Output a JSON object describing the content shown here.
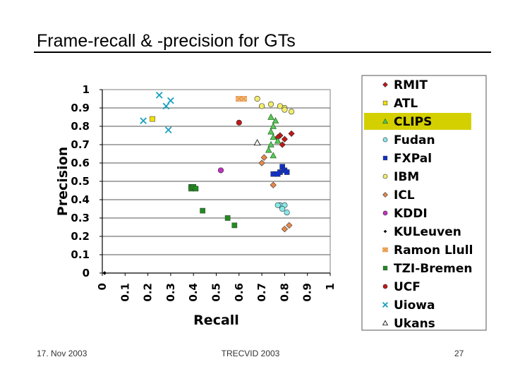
{
  "slide": {
    "title": "Frame-recall & -precision for GTs",
    "footer_date": "17. Nov 2003",
    "footer_conference": "TRECVID 2003",
    "page_number": "27"
  },
  "chart_data": {
    "type": "scatter",
    "title": "",
    "xlabel": "Recall",
    "ylabel": "Precision",
    "xlim": [
      0,
      1
    ],
    "ylim": [
      0,
      1
    ],
    "x_ticks": [
      "0",
      "0.1",
      "0.2",
      "0.3",
      "0.4",
      "0.5",
      "0.6",
      "0.7",
      "0.8",
      "0.9",
      "1"
    ],
    "y_ticks": [
      "0",
      "0.1",
      "0.2",
      "0.3",
      "0.4",
      "0.5",
      "0.6",
      "0.7",
      "0.8",
      "0.9",
      "1"
    ],
    "grid": "horizontal",
    "legend_position": "right",
    "highlighted_series": "CLIPS",
    "highlight_color": "#d4d000",
    "series": [
      {
        "name": "RMIT",
        "marker": "diamond",
        "color": "#c01818",
        "points": [
          [
            0.78,
            0.75
          ],
          [
            0.8,
            0.73
          ],
          [
            0.83,
            0.76
          ],
          [
            0.79,
            0.7
          ],
          [
            0.77,
            0.74
          ]
        ]
      },
      {
        "name": "ATL",
        "marker": "square",
        "color": "#f2e000",
        "points": [
          [
            0.22,
            0.84
          ]
        ]
      },
      {
        "name": "CLIPS",
        "marker": "triangle",
        "color": "#58c858",
        "points": [
          [
            0.74,
            0.85
          ],
          [
            0.75,
            0.8
          ],
          [
            0.76,
            0.83
          ],
          [
            0.74,
            0.77
          ],
          [
            0.75,
            0.74
          ],
          [
            0.77,
            0.72
          ],
          [
            0.74,
            0.7
          ],
          [
            0.73,
            0.67
          ],
          [
            0.75,
            0.64
          ]
        ]
      },
      {
        "name": "Fudan",
        "marker": "circle",
        "color": "#88e8e8",
        "points": [
          [
            0.78,
            0.37
          ],
          [
            0.8,
            0.37
          ],
          [
            0.79,
            0.35
          ],
          [
            0.81,
            0.33
          ],
          [
            0.77,
            0.37
          ]
        ]
      },
      {
        "name": "FXPal",
        "marker": "square",
        "color": "#1030c8",
        "points": [
          [
            0.79,
            0.58
          ],
          [
            0.8,
            0.56
          ],
          [
            0.78,
            0.55
          ],
          [
            0.81,
            0.55
          ],
          [
            0.75,
            0.54
          ],
          [
            0.77,
            0.54
          ]
        ]
      },
      {
        "name": "IBM",
        "marker": "circle",
        "color": "#f2ee6a",
        "points": [
          [
            0.7,
            0.91
          ],
          [
            0.74,
            0.92
          ],
          [
            0.78,
            0.91
          ],
          [
            0.8,
            0.9
          ],
          [
            0.83,
            0.88
          ],
          [
            0.68,
            0.95
          ],
          [
            0.8,
            0.89
          ]
        ]
      },
      {
        "name": "ICL",
        "marker": "diamond",
        "color": "#e8884a",
        "points": [
          [
            0.71,
            0.63
          ],
          [
            0.7,
            0.6
          ],
          [
            0.75,
            0.48
          ],
          [
            0.8,
            0.24
          ],
          [
            0.82,
            0.26
          ]
        ]
      },
      {
        "name": "KDDI",
        "marker": "circle",
        "color": "#c030c0",
        "points": [
          [
            0.52,
            0.56
          ]
        ]
      },
      {
        "name": "KULeuven",
        "marker": "diamond-small",
        "color": "#000000",
        "points": [
          [
            0.01,
            0.0
          ]
        ]
      },
      {
        "name": "Ramon Llull",
        "marker": "x-square",
        "color": "#e89040",
        "points": [
          [
            0.6,
            0.95
          ],
          [
            0.62,
            0.95
          ]
        ]
      },
      {
        "name": "TZI-Bremen",
        "marker": "square",
        "color": "#208c20",
        "points": [
          [
            0.39,
            0.47
          ],
          [
            0.39,
            0.46
          ],
          [
            0.4,
            0.47
          ],
          [
            0.41,
            0.46
          ],
          [
            0.44,
            0.34
          ],
          [
            0.55,
            0.3
          ],
          [
            0.58,
            0.26
          ]
        ]
      },
      {
        "name": "UCF",
        "marker": "circle",
        "color": "#c01818",
        "points": [
          [
            0.6,
            0.82
          ]
        ]
      },
      {
        "name": "Uiowa",
        "marker": "x",
        "color": "#18a0c0",
        "points": [
          [
            0.25,
            0.97
          ],
          [
            0.28,
            0.91
          ],
          [
            0.3,
            0.94
          ],
          [
            0.18,
            0.83
          ],
          [
            0.29,
            0.78
          ]
        ]
      },
      {
        "name": "Ukans",
        "marker": "triangle-open",
        "color": "#ffffff",
        "points": [
          [
            0.68,
            0.71
          ]
        ]
      }
    ]
  }
}
